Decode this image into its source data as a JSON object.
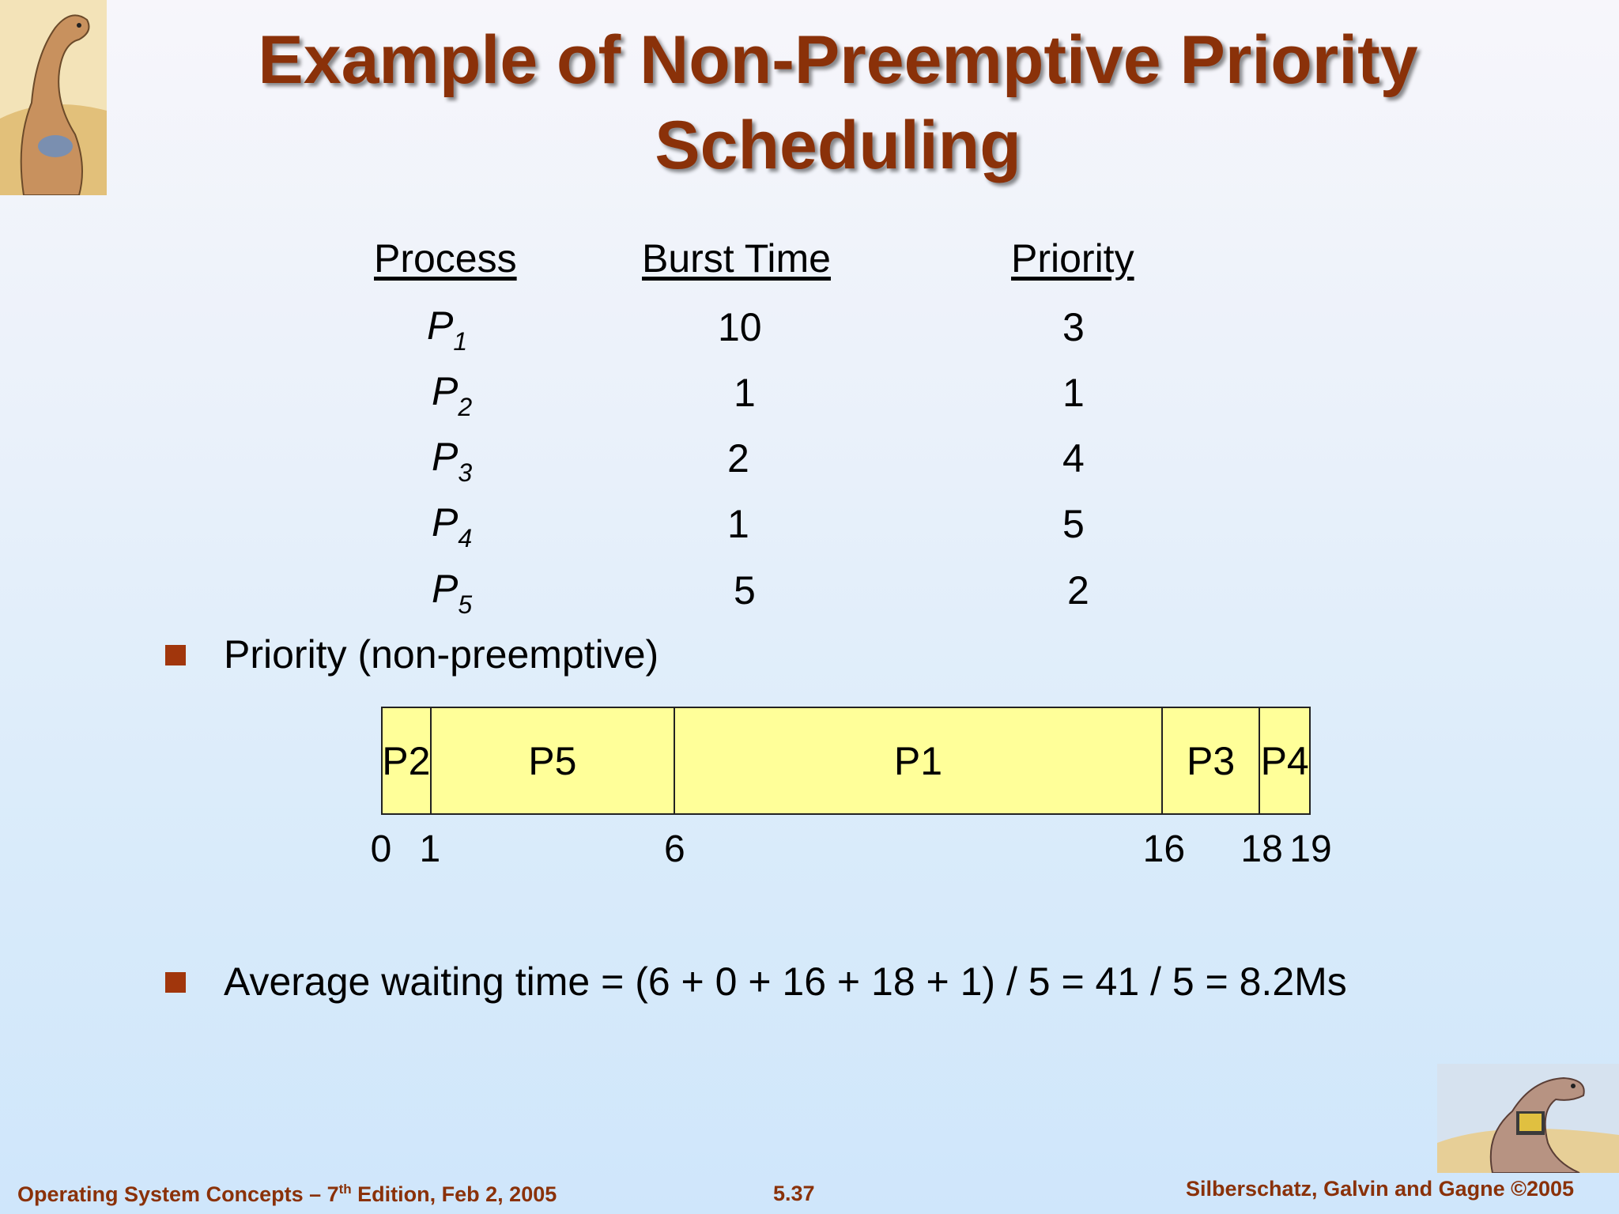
{
  "slide": {
    "title_line1": "Example of Non-Preemptive Priority",
    "title_line2": "Scheduling"
  },
  "table": {
    "headers": [
      "Process",
      "Burst Time",
      "Priority"
    ],
    "rows": [
      {
        "process": "P",
        "sub": "1",
        "burst": "10",
        "priority": "3"
      },
      {
        "process": "P",
        "sub": "2",
        "burst": "1",
        "priority": "1"
      },
      {
        "process": "P",
        "sub": "3",
        "burst": "2",
        "priority": "4"
      },
      {
        "process": "P",
        "sub": "4",
        "burst": "1",
        "priority": "5"
      },
      {
        "process": "P",
        "sub": "5",
        "burst": "5",
        "priority": "2"
      }
    ]
  },
  "bullets": {
    "b1": "Priority (non-preemptive)",
    "b2": "Average waiting time = (6 + 0 + 16 + 18 + 1) / 5 = 41 / 5  = 8.2Ms"
  },
  "gantt": {
    "segments": [
      {
        "label": "P2",
        "start": 0,
        "end": 1
      },
      {
        "label": "P5",
        "start": 1,
        "end": 6
      },
      {
        "label": "P1",
        "start": 6,
        "end": 16
      },
      {
        "label": "P3",
        "start": 16,
        "end": 18
      },
      {
        "label": "P4",
        "start": 18,
        "end": 19
      }
    ],
    "ticks": [
      "0",
      "1",
      "6",
      "16",
      "18",
      "19"
    ],
    "fill_color": "#ffff99"
  },
  "footer": {
    "left_a": "Operating System Concepts – 7",
    "left_sup": "th",
    "left_b": " Edition, Feb 2, 2005",
    "center": "5.37",
    "right": "Silberschatz, Galvin and Gagne ©2005"
  },
  "colors": {
    "title": "#8a3109",
    "bullet": "#a1360c"
  }
}
